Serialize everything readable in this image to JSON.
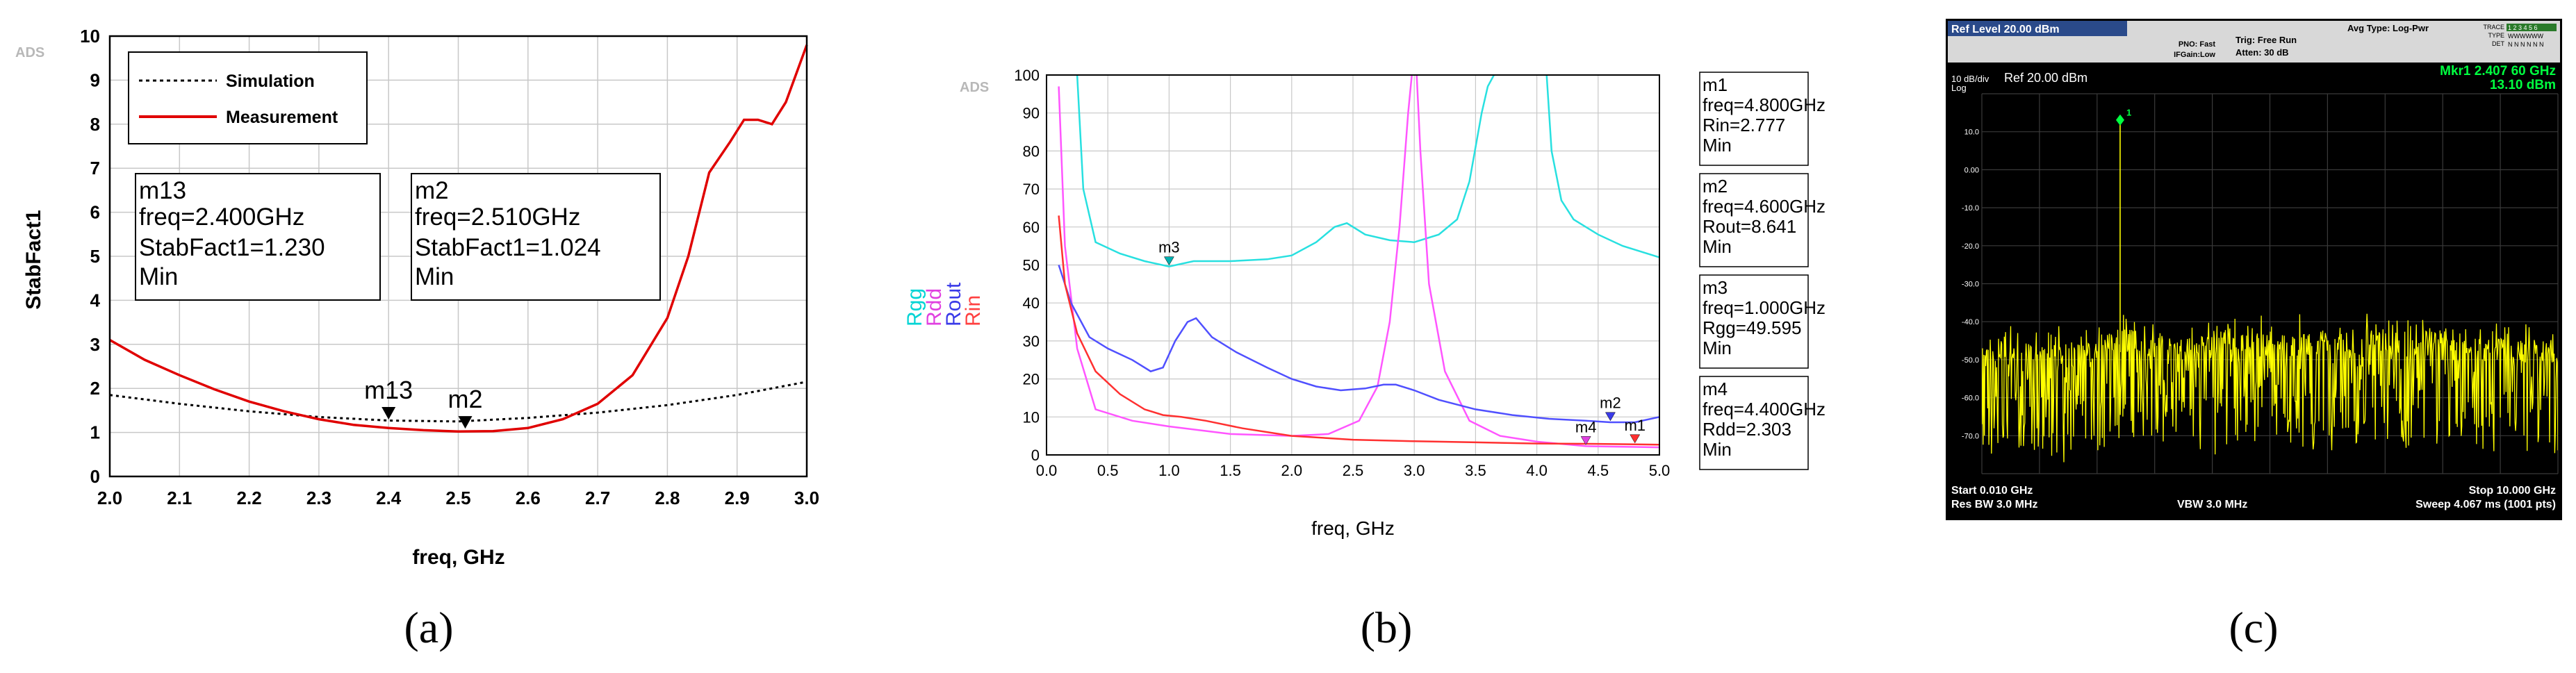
{
  "panel_labels": [
    "(a)",
    "(b)",
    "(c)"
  ],
  "chart_data": [
    {
      "id": "a",
      "type": "line",
      "watermark": "ADS",
      "xlabel": "freq, GHz",
      "ylabel": "StabFact1",
      "xlim": [
        2.0,
        3.0
      ],
      "ylim": [
        0,
        10
      ],
      "xticks": [
        "2.0",
        "2.1",
        "2.2",
        "2.3",
        "2.4",
        "2.5",
        "2.6",
        "2.7",
        "2.8",
        "2.9",
        "3.0"
      ],
      "yticks": [
        "0",
        "1",
        "2",
        "3",
        "4",
        "5",
        "6",
        "7",
        "8",
        "9",
        "10"
      ],
      "grid": true,
      "legend": [
        "Simulation",
        "Measurement"
      ],
      "series": [
        {
          "name": "Simulation",
          "color": "#000000",
          "style": "dotted",
          "x": [
            2.0,
            2.1,
            2.2,
            2.3,
            2.4,
            2.5,
            2.6,
            2.7,
            2.8,
            2.9,
            3.0
          ],
          "y": [
            1.85,
            1.65,
            1.48,
            1.35,
            1.27,
            1.25,
            1.33,
            1.45,
            1.62,
            1.85,
            2.15
          ]
        },
        {
          "name": "Measurement",
          "color": "#e00000",
          "style": "solid",
          "x": [
            2.0,
            2.05,
            2.1,
            2.15,
            2.2,
            2.25,
            2.3,
            2.35,
            2.4,
            2.45,
            2.5,
            2.55,
            2.6,
            2.65,
            2.7,
            2.75,
            2.8,
            2.83,
            2.86,
            2.89,
            2.91,
            2.93,
            2.95,
            2.97,
            3.0
          ],
          "y": [
            3.1,
            2.65,
            2.3,
            1.98,
            1.7,
            1.48,
            1.3,
            1.17,
            1.1,
            1.05,
            1.02,
            1.03,
            1.1,
            1.3,
            1.65,
            2.3,
            3.6,
            5.0,
            6.9,
            7.6,
            8.1,
            8.1,
            8.0,
            8.5,
            9.8
          ]
        }
      ],
      "markers": [
        {
          "name": "m13",
          "x": 2.4,
          "y": 1.23
        },
        {
          "name": "m2",
          "x": 2.51,
          "y": 1.024
        }
      ],
      "boxes": [
        {
          "lines": [
            "m13",
            "freq=2.400GHz",
            "StabFact1=1.230",
            "Min"
          ]
        },
        {
          "lines": [
            "m2",
            "freq=2.510GHz",
            "StabFact1=1.024",
            "Min"
          ]
        }
      ]
    },
    {
      "id": "b",
      "type": "line",
      "watermark": "ADS",
      "xlabel": "freq, GHz",
      "ylabel_parts": [
        {
          "text": "Rgg",
          "color": "#00d4d4"
        },
        {
          "text": "Rdd",
          "color": "#e040e0"
        },
        {
          "text": "Rout",
          "color": "#3a3ae8"
        },
        {
          "text": "Rin",
          "color": "#ff4040"
        }
      ],
      "xlim": [
        0,
        5
      ],
      "ylim": [
        0,
        100
      ],
      "xticks": [
        "0.0",
        "0.5",
        "1.0",
        "1.5",
        "2.0",
        "2.5",
        "3.0",
        "3.5",
        "4.0",
        "4.5",
        "5.0"
      ],
      "yticks": [
        "0",
        "10",
        "20",
        "30",
        "40",
        "50",
        "60",
        "70",
        "80",
        "90",
        "100"
      ],
      "grid": true,
      "series": [
        {
          "name": "Rgg",
          "color": "#28e0e0",
          "segments": [
            {
              "x": [
                0.25,
                0.3,
                0.4,
                0.6,
                0.8,
                1.0,
                1.2,
                1.5,
                1.8,
                2.0,
                2.2,
                2.35,
                2.45,
                2.6,
                2.8,
                3.0,
                3.2,
                3.35,
                3.45,
                3.55,
                3.6,
                3.65
              ],
              "y": [
                100,
                70,
                56,
                53,
                51,
                49.6,
                51,
                51,
                51.5,
                52.5,
                56,
                60,
                61,
                58,
                56.5,
                56,
                58,
                62,
                72,
                90,
                97,
                100
              ]
            },
            {
              "x": [
                4.08,
                4.12,
                4.2,
                4.3,
                4.5,
                4.7,
                4.9,
                5.0
              ],
              "y": [
                100,
                80,
                67,
                62,
                58,
                55,
                53,
                52
              ]
            }
          ]
        },
        {
          "name": "Rdd",
          "color": "#ff55ff",
          "segments": [
            {
              "x": [
                0.1,
                0.15,
                0.25,
                0.4,
                0.7,
                1.0,
                1.5,
                2.0,
                2.3,
                2.55,
                2.7,
                2.8,
                2.88,
                2.95,
                2.98
              ],
              "y": [
                97,
                55,
                28,
                12,
                9,
                7.5,
                5.5,
                5,
                5.5,
                9,
                18,
                35,
                60,
                90,
                100
              ]
            },
            {
              "x": [
                3.02,
                3.05,
                3.12,
                3.25,
                3.45,
                3.7,
                4.0,
                4.4,
                4.8,
                5.0
              ],
              "y": [
                100,
                80,
                45,
                22,
                9,
                5,
                3.5,
                2.3,
                2.1,
                2
              ]
            }
          ]
        },
        {
          "name": "Rout",
          "color": "#5050ff",
          "segments": [
            {
              "x": [
                0.1,
                0.2,
                0.35,
                0.5,
                0.7,
                0.85,
                0.95,
                1.05,
                1.15,
                1.22,
                1.35,
                1.55,
                1.8,
                2.0,
                2.2,
                2.4,
                2.6,
                2.75,
                2.85,
                3.0,
                3.2,
                3.5,
                3.8,
                4.1,
                4.4,
                4.6,
                4.8,
                5.0
              ],
              "y": [
                50,
                40,
                31,
                28,
                25,
                22,
                23,
                30,
                35,
                36,
                31,
                27,
                23,
                20,
                18,
                17,
                17.5,
                18.5,
                18.5,
                17,
                14.5,
                12,
                10.5,
                9.5,
                9,
                8.6,
                8.6,
                10
              ]
            }
          ]
        },
        {
          "name": "Rin",
          "color": "#ff3030",
          "segments": [
            {
              "x": [
                0.1,
                0.15,
                0.25,
                0.4,
                0.6,
                0.8,
                0.95,
                1.1,
                1.3,
                1.6,
                2.0,
                2.5,
                3.0,
                3.5,
                4.0,
                4.5,
                4.8,
                5.0
              ],
              "y": [
                63,
                45,
                32,
                22,
                16,
                12,
                10.5,
                10,
                9,
                7,
                5,
                4,
                3.6,
                3.3,
                3.0,
                2.9,
                2.78,
                2.7
              ]
            }
          ]
        }
      ],
      "markers": [
        {
          "name": "m3",
          "x": 1.0,
          "y": 49.6,
          "color": "#00b0b0"
        },
        {
          "name": "m2",
          "x": 4.6,
          "y": 8.64,
          "color": "#3a3ae8"
        },
        {
          "name": "m4",
          "x": 4.4,
          "y": 2.3,
          "color": "#e040e0"
        },
        {
          "name": "m1",
          "x": 4.8,
          "y": 2.78,
          "color": "#ff3030"
        }
      ],
      "boxes": [
        {
          "lines": [
            "m1",
            "freq=4.800GHz",
            "Rin=2.777",
            "Min"
          ]
        },
        {
          "lines": [
            "m2",
            "freq=4.600GHz",
            "Rout=8.641",
            "Min"
          ]
        },
        {
          "lines": [
            "m3",
            "freq=1.000GHz",
            "Rgg=49.595",
            "Min"
          ]
        },
        {
          "lines": [
            "m4",
            "freq=4.400GHz",
            "Rdd=2.303",
            "Min"
          ]
        }
      ]
    },
    {
      "id": "c",
      "type": "spectrum",
      "header": {
        "ref_level": "Ref Level 20.00 dBm",
        "pno": "PNO: Fast",
        "ifgain": "IFGain:Low",
        "trig": "Trig: Free Run",
        "atten": "Atten: 30 dB",
        "avg_type": "Avg Type: Log-Pwr",
        "trace_label": "TRACE",
        "type_label": "TYPE",
        "det_label": "DET",
        "trace_val": "1 2 3 4 5 6",
        "type_val": "WWWWWW",
        "det_val": "N N N N N N"
      },
      "scale": "10 dB/div",
      "scale_mode": "Log",
      "ref": "Ref 20.00 dBm",
      "marker_readout": [
        "Mkr1 2.407 60 GHz",
        "13.10 dBm"
      ],
      "marker_label": "1",
      "yticks": [
        "10.0",
        "0.00",
        "-10.0",
        "-20.0",
        "-30.0",
        "-40.0",
        "-50.0",
        "-60.0",
        "-70.0"
      ],
      "xlim_ghz": [
        0.01,
        10.0
      ],
      "ylim_dbm": [
        -80,
        20
      ],
      "peak": {
        "freq_ghz": 2.4076,
        "level_dbm": 13.1
      },
      "noise_floor_dbm": {
        "start": -50,
        "mid": -46,
        "end": -48
      },
      "footer": {
        "start": "Start 0.010 GHz",
        "stop": "Stop 10.000 GHz",
        "rbw": "Res BW 3.0 MHz",
        "vbw": "VBW 3.0 MHz",
        "sweep": "Sweep  4.067 ms (1001 pts)"
      },
      "trace_color": "#ffff00"
    }
  ],
  "colors": {
    "red": "#e00000",
    "black": "#000000",
    "spectrum_bg": "#000000",
    "spectrum_grid": "#3a3a3a",
    "mkr_text": "#00ff40"
  }
}
